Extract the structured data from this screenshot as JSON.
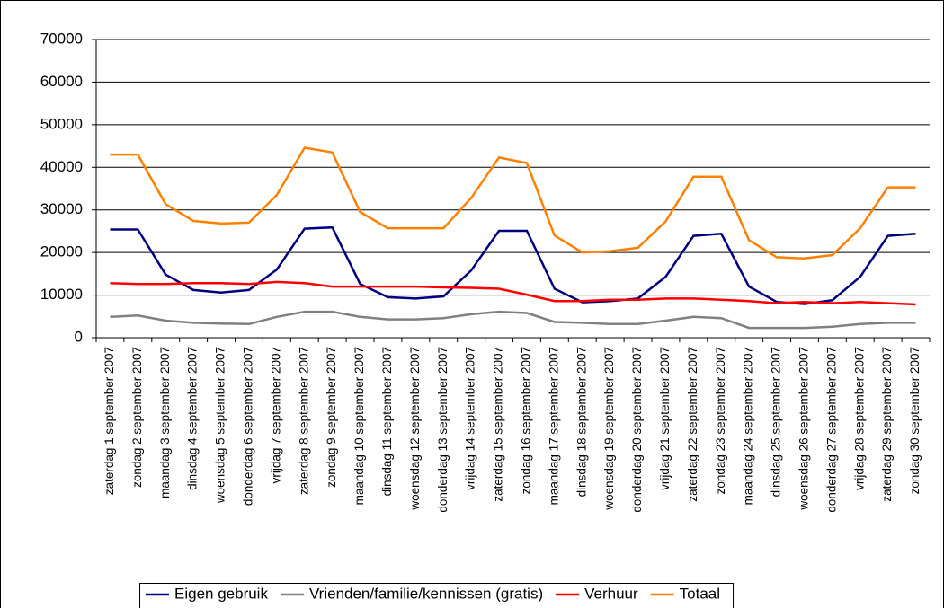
{
  "chart_data": {
    "type": "line",
    "categories": [
      "zaterdag 1 september 2007",
      "zondag 2 september 2007",
      "maandag 3 september 2007",
      "dinsdag 4 september 2007",
      "woensdag 5 september 2007",
      "donderdag 6 september 2007",
      "vrijdag 7 september 2007",
      "zaterdag 8 september 2007",
      "zondag 9 september 2007",
      "maandag 10 september 2007",
      "dinsdag 11 september 2007",
      "woensdag 12 september 2007",
      "donderdag 13 september 2007",
      "vrijdag 14 september 2007",
      "zaterdag 15 september 2007",
      "zondag 16 september 2007",
      "maandag 17 september 2007",
      "dinsdag 18 september 2007",
      "woensdag 19 september 2007",
      "donderdag 20 september 2007",
      "vrijdag 21 september 2007",
      "zaterdag 22 september 2007",
      "zondag 23 september 2007",
      "maandag 24 september 2007",
      "dinsdag 25 september 2007",
      "woensdag 26 september 2007",
      "donderdag 27 september 2007",
      "vrijdag 28 september 2007",
      "zaterdag 29 september 2007",
      "zondag 30 september 2007"
    ],
    "series": [
      {
        "name": "Eigen gebruik",
        "color": "#000080",
        "values": [
          25400,
          25400,
          14800,
          11200,
          10600,
          11200,
          16000,
          25600,
          25900,
          12600,
          9500,
          9200,
          9700,
          15800,
          25100,
          25100,
          11500,
          8300,
          8600,
          9200,
          14300,
          23900,
          24400,
          12000,
          8400,
          7900,
          8800,
          14300,
          23900,
          24400
        ]
      },
      {
        "name": "Vrienden/familie/kennissen (gratis)",
        "color": "#808080",
        "values": [
          4900,
          5200,
          4000,
          3500,
          3300,
          3200,
          4900,
          6100,
          6100,
          4900,
          4300,
          4300,
          4600,
          5500,
          6100,
          5800,
          3700,
          3500,
          3200,
          3200,
          4000,
          4900,
          4600,
          2300,
          2300,
          2300,
          2600,
          3200,
          3500,
          3500
        ]
      },
      {
        "name": "Verhuur",
        "color": "#ff0000",
        "values": [
          12800,
          12600,
          12600,
          12800,
          12800,
          12600,
          13100,
          12800,
          12000,
          12000,
          12000,
          12000,
          11800,
          11700,
          11500,
          10100,
          8600,
          8600,
          8900,
          8900,
          9200,
          9200,
          8900,
          8600,
          8100,
          8400,
          8100,
          8400,
          8100,
          7800
        ]
      },
      {
        "name": "Totaal",
        "color": "#ff8000",
        "values": [
          43000,
          43000,
          31300,
          27400,
          26800,
          27000,
          33500,
          44600,
          43500,
          29500,
          25700,
          25700,
          25700,
          32800,
          42300,
          41000,
          24000,
          20000,
          20300,
          21100,
          27300,
          37800,
          37800,
          22900,
          18900,
          18600,
          19400,
          25700,
          35300,
          35300
        ]
      }
    ],
    "ylim": [
      0,
      70000
    ],
    "yticks": [
      0,
      10000,
      20000,
      30000,
      40000,
      50000,
      60000,
      70000
    ],
    "grid": true,
    "legend": "bottom"
  }
}
